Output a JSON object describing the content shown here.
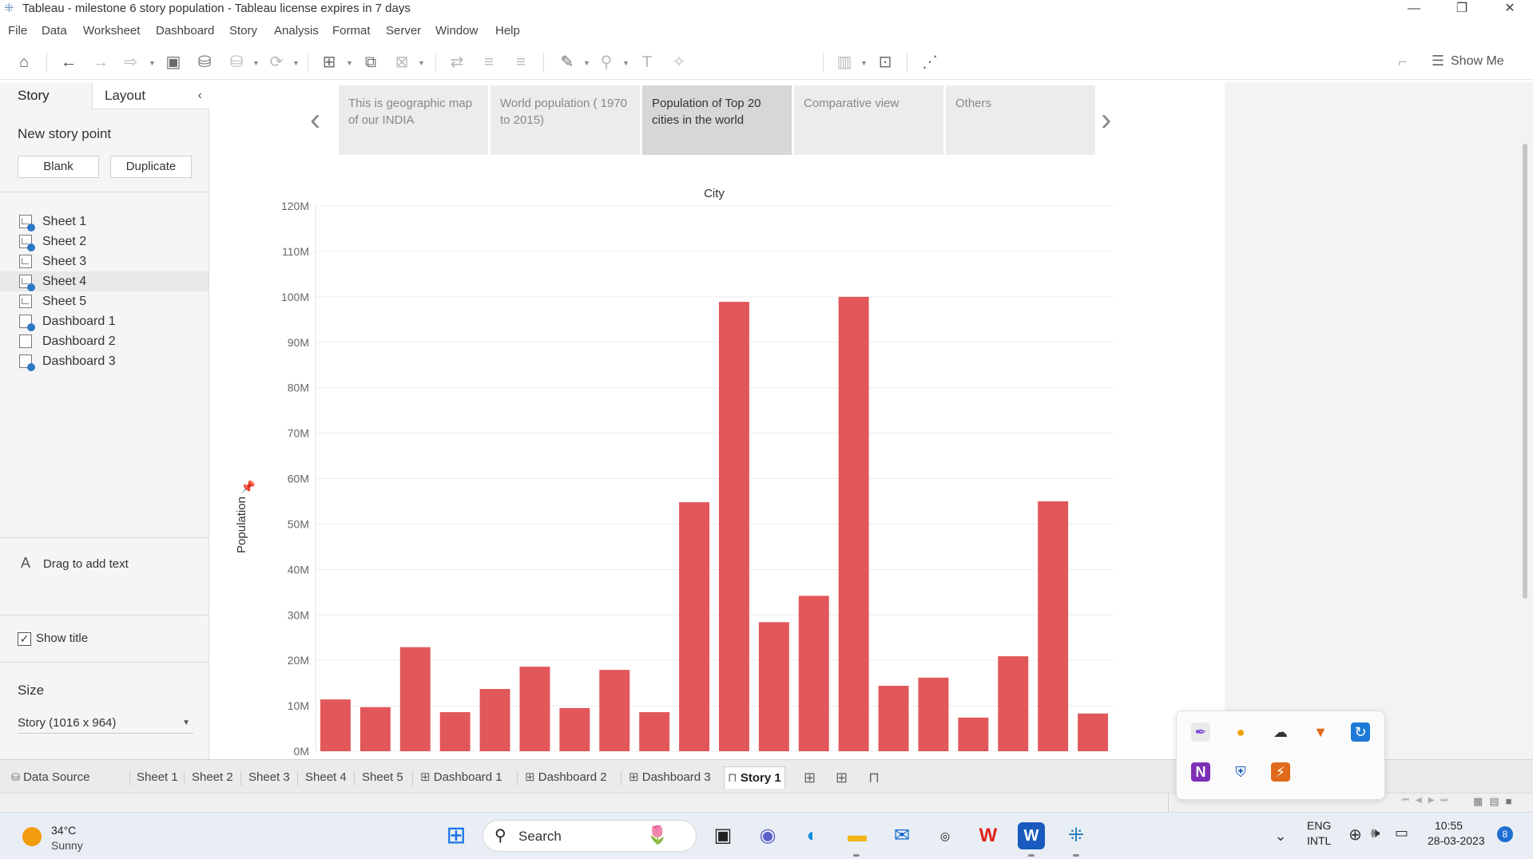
{
  "window": {
    "title": "Tableau - milestone 6 story population - Tableau license expires in 7 days",
    "controls": [
      "—",
      "❐",
      "✕"
    ]
  },
  "menu": [
    "File",
    "Data",
    "Worksheet",
    "Dashboard",
    "Story",
    "Analysis",
    "Format",
    "Server",
    "Window",
    "Help"
  ],
  "toolbar": {
    "show_me": "Show Me"
  },
  "left_panel": {
    "tabs": [
      "Story",
      "Layout"
    ],
    "new_story_point": "New story point",
    "blank_button": "Blank",
    "duplicate_button": "Duplicate",
    "sheets": [
      {
        "label": "Sheet 1",
        "type": "sheet",
        "checked": true
      },
      {
        "label": "Sheet 2",
        "type": "sheet",
        "checked": true
      },
      {
        "label": "Sheet 3",
        "type": "sheet",
        "checked": false
      },
      {
        "label": "Sheet 4",
        "type": "sheet",
        "checked": true
      },
      {
        "label": "Sheet 5",
        "type": "sheet",
        "checked": false
      },
      {
        "label": "Dashboard 1",
        "type": "dashboard",
        "checked": true
      },
      {
        "label": "Dashboard 2",
        "type": "dashboard",
        "checked": false
      },
      {
        "label": "Dashboard 3",
        "type": "dashboard",
        "checked": true
      }
    ],
    "drag_text": "Drag to add text",
    "drag_icon": "A",
    "show_title": "Show title",
    "size_label": "Size",
    "size_value": "Story (1016 x 964)"
  },
  "story_points": [
    {
      "text": "This is geographic map of our    INDIA",
      "active": false
    },
    {
      "text": "World population ( 1970 to 2015)",
      "active": false
    },
    {
      "text": "Population of Top 20 cities in the world",
      "active": true
    },
    {
      "text": "Comparative view",
      "active": false
    },
    {
      "text": "Others",
      "active": false
    }
  ],
  "chart_data": {
    "type": "bar",
    "title": "City",
    "xlabel": "",
    "ylabel": "Population",
    "ylim": [
      0,
      120000000
    ],
    "yticks": [
      "0M",
      "10M",
      "20M",
      "30M",
      "40M",
      "50M",
      "60M",
      "70M",
      "80M",
      "90M",
      "100M",
      "110M",
      "120M"
    ],
    "bar_color": "#e1575a",
    "values": [
      11400000,
      9700000,
      22900000,
      8600000,
      13700000,
      18600000,
      9500000,
      17900000,
      8600000,
      54800000,
      98900000,
      28400000,
      34200000,
      100000000,
      14400000,
      16200000,
      7400000,
      20900000,
      55000000,
      8300000
    ]
  },
  "sheet_tabs": [
    "Data Source",
    "Sheet 1",
    "Sheet 2",
    "Sheet 3",
    "Sheet 4",
    "Sheet 5",
    "Dashboard 1",
    "Dashboard 2",
    "Dashboard 3",
    "Story 1"
  ],
  "active_sheet_tab": "Story 1",
  "taskbar": {
    "temperature": "34°C",
    "weather": "Sunny",
    "search": "Search",
    "lang_top": "ENG",
    "lang_bottom": "INTL",
    "time": "10:55",
    "date": "28-03-2023",
    "notifications": "8"
  }
}
